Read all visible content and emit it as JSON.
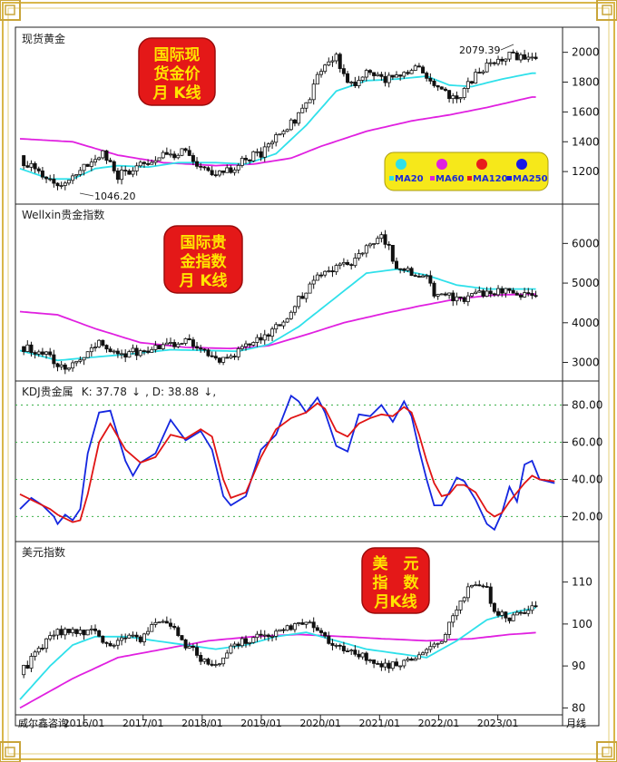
{
  "colors": {
    "ma20": "#2fe0ea",
    "ma60": "#e020e0",
    "ma120": "#e81c1c",
    "ma250": "#1818e8",
    "k_line": "#1426e0",
    "d_line": "#e01414",
    "stamp_fill": "#e41818",
    "stamp_text": "#ffe400",
    "legend_bg": "#f6e81a",
    "frame_gold": "#d9b74a"
  },
  "x_axis": {
    "labels": [
      "2016/01",
      "2017/01",
      "2018/01",
      "2019/01",
      "2020/01",
      "2021/01",
      "2022/01",
      "2023/01"
    ],
    "left_label": "威尔鑫咨询",
    "right_label": "月线"
  },
  "chart_data": [
    {
      "id": "gold",
      "type": "candlestick",
      "title": "现货黄金",
      "stamp": [
        "国际现",
        "货金价",
        "月 K线"
      ],
      "ylim": [
        1000,
        2150
      ],
      "yticks": [
        1200,
        1400,
        1600,
        1800,
        2000
      ],
      "annotations": [
        {
          "text": "2079.39",
          "type": "high"
        },
        {
          "text": "1046.20",
          "type": "low"
        }
      ],
      "legend": [
        {
          "label": "MA20",
          "color": "#2fe0ea"
        },
        {
          "label": "MA60",
          "color": "#e020e0"
        },
        {
          "label": "MA120",
          "color": "#e81c1c"
        },
        {
          "label": "MA250",
          "color": "#1818e8"
        }
      ],
      "anchors": [
        [
          0,
          1280
        ],
        [
          6,
          1190
        ],
        [
          10,
          1080
        ],
        [
          13,
          1120
        ],
        [
          18,
          1260
        ],
        [
          22,
          1340
        ],
        [
          26,
          1170
        ],
        [
          32,
          1250
        ],
        [
          38,
          1300
        ],
        [
          44,
          1340
        ],
        [
          48,
          1230
        ],
        [
          52,
          1190
        ],
        [
          56,
          1220
        ],
        [
          60,
          1290
        ],
        [
          64,
          1320
        ],
        [
          68,
          1420
        ],
        [
          72,
          1520
        ],
        [
          76,
          1650
        ],
        [
          80,
          1890
        ],
        [
          84,
          1960
        ],
        [
          88,
          1780
        ],
        [
          92,
          1860
        ],
        [
          96,
          1810
        ],
        [
          100,
          1830
        ],
        [
          106,
          1920
        ],
        [
          110,
          1780
        ],
        [
          116,
          1660
        ],
        [
          120,
          1820
        ],
        [
          125,
          1920
        ],
        [
          130,
          1980
        ],
        [
          136,
          1950
        ]
      ],
      "ma20_anchors": [
        [
          0,
          1220
        ],
        [
          8,
          1150
        ],
        [
          14,
          1150
        ],
        [
          20,
          1220
        ],
        [
          26,
          1240
        ],
        [
          34,
          1230
        ],
        [
          42,
          1260
        ],
        [
          52,
          1260
        ],
        [
          60,
          1250
        ],
        [
          68,
          1320
        ],
        [
          76,
          1510
        ],
        [
          84,
          1740
        ],
        [
          92,
          1810
        ],
        [
          100,
          1820
        ],
        [
          108,
          1840
        ],
        [
          114,
          1780
        ],
        [
          120,
          1770
        ],
        [
          128,
          1820
        ],
        [
          136,
          1860
        ]
      ],
      "ma60_anchors": [
        [
          0,
          1420
        ],
        [
          14,
          1400
        ],
        [
          26,
          1310
        ],
        [
          38,
          1260
        ],
        [
          52,
          1240
        ],
        [
          62,
          1250
        ],
        [
          72,
          1290
        ],
        [
          80,
          1370
        ],
        [
          92,
          1470
        ],
        [
          104,
          1540
        ],
        [
          114,
          1580
        ],
        [
          124,
          1630
        ],
        [
          136,
          1700
        ]
      ]
    },
    {
      "id": "index",
      "type": "candlestick",
      "title": "Wellxin贵金指数",
      "stamp": [
        "国际贵",
        "金指数",
        "月 K线"
      ],
      "ylim": [
        2600,
        6900
      ],
      "yticks": [
        3000,
        4000,
        5000,
        6000
      ],
      "legend": [],
      "anchors": [
        [
          0,
          3400
        ],
        [
          6,
          3250
        ],
        [
          10,
          2950
        ],
        [
          13,
          2900
        ],
        [
          18,
          3300
        ],
        [
          22,
          3500
        ],
        [
          26,
          3150
        ],
        [
          32,
          3300
        ],
        [
          38,
          3350
        ],
        [
          44,
          3550
        ],
        [
          48,
          3300
        ],
        [
          52,
          3050
        ],
        [
          56,
          3150
        ],
        [
          60,
          3400
        ],
        [
          64,
          3600
        ],
        [
          68,
          3900
        ],
        [
          72,
          4300
        ],
        [
          76,
          4850
        ],
        [
          80,
          5200
        ],
        [
          84,
          5400
        ],
        [
          88,
          5500
        ],
        [
          92,
          5900
        ],
        [
          96,
          6300
        ],
        [
          100,
          5400
        ],
        [
          104,
          5300
        ],
        [
          108,
          5200
        ],
        [
          110,
          4750
        ],
        [
          116,
          4600
        ],
        [
          122,
          4700
        ],
        [
          128,
          4850
        ],
        [
          132,
          4650
        ],
        [
          136,
          4700
        ]
      ],
      "ma20_anchors": [
        [
          0,
          3300
        ],
        [
          10,
          3050
        ],
        [
          18,
          3120
        ],
        [
          28,
          3200
        ],
        [
          40,
          3320
        ],
        [
          50,
          3300
        ],
        [
          58,
          3280
        ],
        [
          66,
          3450
        ],
        [
          74,
          3900
        ],
        [
          84,
          4650
        ],
        [
          92,
          5250
        ],
        [
          100,
          5350
        ],
        [
          108,
          5200
        ],
        [
          116,
          4950
        ],
        [
          124,
          4850
        ],
        [
          136,
          4850
        ]
      ],
      "ma60_anchors": [
        [
          0,
          4280
        ],
        [
          10,
          4200
        ],
        [
          20,
          3850
        ],
        [
          32,
          3500
        ],
        [
          44,
          3380
        ],
        [
          56,
          3350
        ],
        [
          66,
          3420
        ],
        [
          76,
          3700
        ],
        [
          86,
          4000
        ],
        [
          96,
          4220
        ],
        [
          106,
          4420
        ],
        [
          116,
          4600
        ],
        [
          126,
          4700
        ],
        [
          136,
          4720
        ]
      ]
    },
    {
      "id": "kdj",
      "type": "line",
      "title": "KDJ贵金属",
      "legend_text": [
        {
          "text": "K: 37.78",
          "color": "#1426e0"
        },
        {
          "text": ", D: 38.88",
          "color": "#e01414"
        }
      ],
      "ylim": [
        8,
        91
      ],
      "yticks": [
        20,
        40,
        60,
        80
      ],
      "ytick_labels": [
        "20.00",
        "40.00",
        "60.00",
        "80.00"
      ],
      "series": [
        {
          "name": "K",
          "points": [
            [
              0,
              24
            ],
            [
              3,
              30
            ],
            [
              6,
              26
            ],
            [
              9,
              20
            ],
            [
              10,
              16
            ],
            [
              12,
              21
            ],
            [
              14,
              18
            ],
            [
              16,
              24
            ],
            [
              18,
              54
            ],
            [
              21,
              76
            ],
            [
              24,
              77
            ],
            [
              28,
              50
            ],
            [
              30,
              42
            ],
            [
              32,
              49
            ],
            [
              36,
              54
            ],
            [
              40,
              72
            ],
            [
              44,
              61
            ],
            [
              48,
              66
            ],
            [
              51,
              56
            ],
            [
              54,
              31
            ],
            [
              56,
              26
            ],
            [
              60,
              31
            ],
            [
              64,
              56
            ],
            [
              68,
              64
            ],
            [
              72,
              85
            ],
            [
              74,
              82
            ],
            [
              76,
              76
            ],
            [
              79,
              84
            ],
            [
              81,
              76
            ],
            [
              84,
              58
            ],
            [
              87,
              55
            ],
            [
              90,
              75
            ],
            [
              93,
              74
            ],
            [
              96,
              80
            ],
            [
              99,
              71
            ],
            [
              102,
              82
            ],
            [
              104,
              74
            ],
            [
              106,
              56
            ],
            [
              108,
              40
            ],
            [
              110,
              26
            ],
            [
              112,
              26
            ],
            [
              114,
              33
            ],
            [
              116,
              41
            ],
            [
              118,
              39
            ],
            [
              121,
              29
            ],
            [
              124,
              16
            ],
            [
              126,
              13
            ],
            [
              128,
              22
            ],
            [
              130,
              36
            ],
            [
              132,
              28
            ],
            [
              134,
              48
            ],
            [
              136,
              50
            ],
            [
              138,
              40
            ],
            [
              142,
              38
            ]
          ]
        },
        {
          "name": "D",
          "points": [
            [
              0,
              32
            ],
            [
              4,
              28
            ],
            [
              8,
              24
            ],
            [
              10,
              21
            ],
            [
              12,
              19
            ],
            [
              14,
              17
            ],
            [
              16,
              18
            ],
            [
              18,
              32
            ],
            [
              21,
              60
            ],
            [
              24,
              70
            ],
            [
              28,
              56
            ],
            [
              32,
              49
            ],
            [
              36,
              52
            ],
            [
              40,
              64
            ],
            [
              44,
              62
            ],
            [
              48,
              67
            ],
            [
              51,
              63
            ],
            [
              54,
              40
            ],
            [
              56,
              30
            ],
            [
              60,
              33
            ],
            [
              64,
              52
            ],
            [
              68,
              67
            ],
            [
              72,
              73
            ],
            [
              76,
              76
            ],
            [
              79,
              81
            ],
            [
              81,
              78
            ],
            [
              84,
              66
            ],
            [
              87,
              63
            ],
            [
              90,
              70
            ],
            [
              93,
              73
            ],
            [
              96,
              75
            ],
            [
              99,
              74
            ],
            [
              102,
              79
            ],
            [
              104,
              76
            ],
            [
              106,
              64
            ],
            [
              108,
              50
            ],
            [
              110,
              38
            ],
            [
              112,
              31
            ],
            [
              114,
              32
            ],
            [
              116,
              37
            ],
            [
              118,
              37
            ],
            [
              121,
              33
            ],
            [
              124,
              23
            ],
            [
              126,
              20
            ],
            [
              128,
              22
            ],
            [
              130,
              28
            ],
            [
              134,
              38
            ],
            [
              136,
              42
            ],
            [
              138,
              40
            ],
            [
              142,
              39
            ]
          ]
        }
      ]
    },
    {
      "id": "usd",
      "type": "candlestick",
      "title": "美元指数",
      "stamp": [
        "美　元",
        "指　数",
        "月K线"
      ],
      "ylim": [
        79,
        119
      ],
      "yticks": [
        80,
        90,
        100,
        110
      ],
      "legend": [],
      "anchors": [
        [
          0,
          88
        ],
        [
          6,
          95
        ],
        [
          10,
          98
        ],
        [
          16,
          98
        ],
        [
          20,
          99
        ],
        [
          24,
          94
        ],
        [
          28,
          97
        ],
        [
          32,
          96
        ],
        [
          36,
          100
        ],
        [
          40,
          100
        ],
        [
          44,
          95
        ],
        [
          48,
          92
        ],
        [
          52,
          90
        ],
        [
          56,
          95
        ],
        [
          60,
          96
        ],
        [
          64,
          97
        ],
        [
          68,
          98
        ],
        [
          72,
          99
        ],
        [
          76,
          101
        ],
        [
          80,
          97
        ],
        [
          84,
          95
        ],
        [
          88,
          93
        ],
        [
          92,
          92
        ],
        [
          96,
          90
        ],
        [
          100,
          90
        ],
        [
          104,
          92
        ],
        [
          108,
          94
        ],
        [
          112,
          96
        ],
        [
          116,
          103
        ],
        [
          120,
          110
        ],
        [
          124,
          108
        ],
        [
          126,
          103
        ],
        [
          130,
          101
        ],
        [
          134,
          103
        ],
        [
          138,
          104
        ]
      ],
      "ma20_anchors": [
        [
          0,
          82
        ],
        [
          8,
          90
        ],
        [
          14,
          95
        ],
        [
          20,
          97
        ],
        [
          28,
          97
        ],
        [
          36,
          96
        ],
        [
          44,
          95
        ],
        [
          52,
          94
        ],
        [
          60,
          95
        ],
        [
          68,
          97
        ],
        [
          76,
          98
        ],
        [
          84,
          96
        ],
        [
          92,
          94
        ],
        [
          100,
          93
        ],
        [
          108,
          92
        ],
        [
          116,
          96
        ],
        [
          124,
          101
        ],
        [
          132,
          103
        ],
        [
          138,
          104
        ]
      ],
      "ma60_anchors": [
        [
          0,
          80
        ],
        [
          14,
          87
        ],
        [
          26,
          92
        ],
        [
          38,
          94
        ],
        [
          50,
          96
        ],
        [
          62,
          97
        ],
        [
          74,
          97.5
        ],
        [
          86,
          97
        ],
        [
          96,
          96.5
        ],
        [
          108,
          96
        ],
        [
          120,
          96.5
        ],
        [
          130,
          97.5
        ],
        [
          138,
          98
        ]
      ]
    }
  ]
}
